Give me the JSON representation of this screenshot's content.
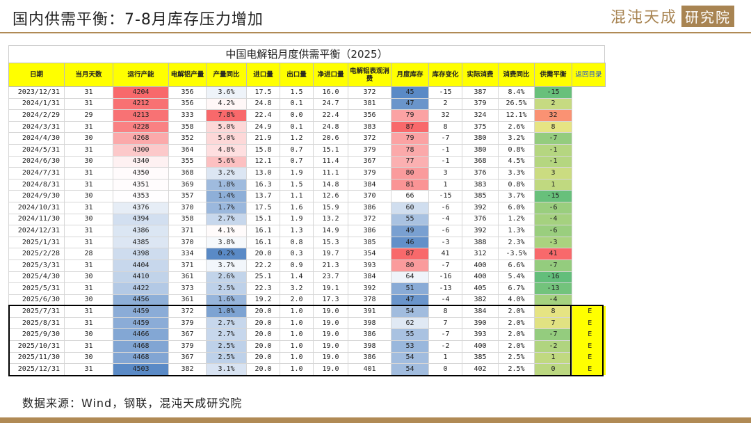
{
  "header": {
    "title": "国内供需平衡：7-8月库存压力增加",
    "logo_text": "混沌天成",
    "logo_box_text": "研究院"
  },
  "table": {
    "title": "中国电解铝月度供需平衡（2025）",
    "columns": [
      "日期",
      "当月天数",
      "运行产能",
      "电解铝产量",
      "产量同比",
      "进口量",
      "出口量",
      "净进口量",
      "电解铝表观消费",
      "月度库存",
      "库存变化",
      "实际消费",
      "消费同比",
      "供需平衡"
    ],
    "link_label": "返回目录",
    "rows": [
      [
        "2023/12/31",
        "31",
        "4204",
        "356",
        "3.6%",
        "17.5",
        "1.5",
        "16.0",
        "372",
        "45",
        "-15",
        "387",
        "8.4%",
        "-15",
        ""
      ],
      [
        "2024/1/31",
        "31",
        "4212",
        "356",
        "4.2%",
        "24.8",
        "0.1",
        "24.7",
        "381",
        "47",
        "2",
        "379",
        "26.5%",
        "2",
        ""
      ],
      [
        "2024/2/29",
        "29",
        "4213",
        "333",
        "7.8%",
        "22.4",
        "0.0",
        "22.4",
        "356",
        "79",
        "32",
        "324",
        "12.1%",
        "32",
        ""
      ],
      [
        "2024/3/31",
        "31",
        "4228",
        "358",
        "5.0%",
        "24.9",
        "0.1",
        "24.8",
        "383",
        "87",
        "8",
        "375",
        "2.6%",
        "8",
        ""
      ],
      [
        "2024/4/30",
        "30",
        "4268",
        "352",
        "5.0%",
        "21.9",
        "1.2",
        "20.6",
        "372",
        "79",
        "-7",
        "380",
        "3.2%",
        "-7",
        ""
      ],
      [
        "2024/5/31",
        "31",
        "4300",
        "364",
        "4.8%",
        "15.8",
        "0.7",
        "15.1",
        "379",
        "78",
        "-1",
        "380",
        "0.8%",
        "-1",
        ""
      ],
      [
        "2024/6/30",
        "30",
        "4340",
        "355",
        "5.6%",
        "12.1",
        "0.7",
        "11.4",
        "367",
        "77",
        "-1",
        "368",
        "4.5%",
        "-1",
        ""
      ],
      [
        "2024/7/31",
        "31",
        "4350",
        "368",
        "3.2%",
        "13.0",
        "1.9",
        "11.1",
        "379",
        "80",
        "3",
        "376",
        "3.3%",
        "3",
        ""
      ],
      [
        "2024/8/31",
        "31",
        "4351",
        "369",
        "1.8%",
        "16.3",
        "1.5",
        "14.8",
        "384",
        "81",
        "1",
        "383",
        "0.8%",
        "1",
        ""
      ],
      [
        "2024/9/30",
        "30",
        "4353",
        "357",
        "1.4%",
        "13.7",
        "1.1",
        "12.6",
        "370",
        "66",
        "-15",
        "385",
        "3.7%",
        "-15",
        ""
      ],
      [
        "2024/10/31",
        "31",
        "4376",
        "370",
        "1.7%",
        "17.5",
        "1.6",
        "15.9",
        "386",
        "60",
        "-6",
        "392",
        "6.0%",
        "-6",
        ""
      ],
      [
        "2024/11/30",
        "30",
        "4394",
        "358",
        "2.7%",
        "15.1",
        "1.9",
        "13.2",
        "372",
        "55",
        "-4",
        "376",
        "1.2%",
        "-4",
        ""
      ],
      [
        "2024/12/31",
        "31",
        "4386",
        "371",
        "4.1%",
        "16.1",
        "1.3",
        "14.9",
        "386",
        "49",
        "-6",
        "392",
        "1.3%",
        "-6",
        ""
      ],
      [
        "2025/1/31",
        "31",
        "4385",
        "370",
        "3.8%",
        "16.1",
        "0.8",
        "15.3",
        "385",
        "46",
        "-3",
        "388",
        "2.3%",
        "-3",
        ""
      ],
      [
        "2025/2/28",
        "28",
        "4398",
        "334",
        "0.2%",
        "20.0",
        "0.3",
        "19.7",
        "354",
        "87",
        "41",
        "312",
        "-3.5%",
        "41",
        ""
      ],
      [
        "2025/3/31",
        "31",
        "4404",
        "371",
        "3.7%",
        "22.2",
        "0.9",
        "21.3",
        "393",
        "80",
        "-7",
        "400",
        "6.6%",
        "-7",
        ""
      ],
      [
        "2025/4/30",
        "30",
        "4410",
        "361",
        "2.6%",
        "25.1",
        "1.4",
        "23.7",
        "384",
        "64",
        "-16",
        "400",
        "5.4%",
        "-16",
        ""
      ],
      [
        "2025/5/31",
        "31",
        "4422",
        "373",
        "2.5%",
        "22.3",
        "3.2",
        "19.1",
        "392",
        "51",
        "-13",
        "405",
        "6.7%",
        "-13",
        ""
      ],
      [
        "2025/6/30",
        "30",
        "4456",
        "361",
        "1.6%",
        "19.2",
        "2.0",
        "17.3",
        "378",
        "47",
        "-4",
        "382",
        "4.0%",
        "-4",
        ""
      ],
      [
        "2025/7/31",
        "31",
        "4459",
        "372",
        "1.0%",
        "20.0",
        "1.0",
        "19.0",
        "391",
        "54",
        "8",
        "384",
        "2.0%",
        "8",
        "E"
      ],
      [
        "2025/8/31",
        "31",
        "4459",
        "379",
        "2.7%",
        "20.0",
        "1.0",
        "19.0",
        "398",
        "62",
        "7",
        "390",
        "2.0%",
        "7",
        "E"
      ],
      [
        "2025/9/30",
        "30",
        "4466",
        "367",
        "2.7%",
        "20.0",
        "1.0",
        "19.0",
        "386",
        "55",
        "-7",
        "393",
        "2.0%",
        "-7",
        "E"
      ],
      [
        "2025/10/31",
        "31",
        "4468",
        "379",
        "2.5%",
        "20.0",
        "1.0",
        "19.0",
        "398",
        "53",
        "-2",
        "400",
        "2.0%",
        "-2",
        "E"
      ],
      [
        "2025/11/30",
        "30",
        "4468",
        "367",
        "2.5%",
        "20.0",
        "1.0",
        "19.0",
        "386",
        "54",
        "1",
        "385",
        "2.5%",
        "1",
        "E"
      ],
      [
        "2025/12/31",
        "31",
        "4503",
        "382",
        "3.1%",
        "20.0",
        "1.0",
        "19.0",
        "401",
        "54",
        "0",
        "402",
        "2.5%",
        "0",
        "E"
      ]
    ],
    "colors": {
      "header_bg": "#ffff00",
      "high_red": "#f8696b",
      "low_blue": "#5a8ac6",
      "balance_green": "#63be7b",
      "balance_yellow": "#ffeb84",
      "balance_red": "#f8696b",
      "forecast_flag_bg": "#ffff00"
    }
  },
  "footer": {
    "source": "数据来源：Wind，钢联，混沌天成研究院"
  }
}
